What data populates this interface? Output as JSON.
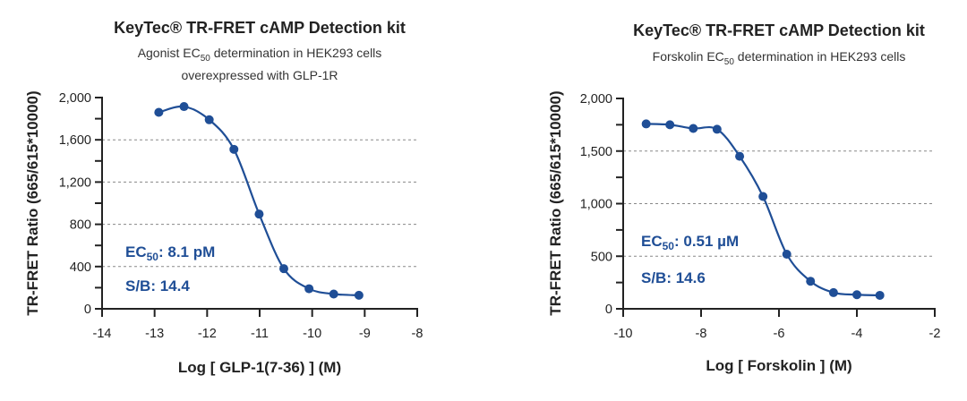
{
  "colors": {
    "series": "#1f4e96",
    "axis": "#222222",
    "grid": "#888888"
  },
  "chart_data": [
    {
      "type": "scatter",
      "fit": "sigmoidal curve",
      "title": "KeyTec® TR-FRET cAMP Detection kit",
      "subtitle": {
        "line1_pre": "Agonist EC",
        "line1_sub": "50",
        "line1_post": " determination in HEK293 cells",
        "line2": "overexpressed with GLP-1R"
      },
      "xlabel": "Log [ GLP-1(7-36) ] (M)",
      "ylabel": "TR-FRET Ratio (665/615*10000)",
      "xlim": [
        -14,
        -8
      ],
      "ylim": [
        0,
        2000
      ],
      "xticks": [
        -14,
        -13,
        -12,
        -11,
        -10,
        -9,
        -8
      ],
      "xtick_labels": [
        "-14",
        "-13",
        "-12",
        "-11",
        "-10",
        "-9",
        "-8"
      ],
      "yticks": [
        0,
        400,
        800,
        1200,
        1600,
        2000
      ],
      "ytick_labels": [
        "0",
        "400",
        "800",
        "1,200",
        "1,600",
        "2,000"
      ],
      "yminor_step": 200,
      "grid": [
        400,
        800,
        1200,
        1600
      ],
      "x": [
        -12.92,
        -12.44,
        -11.96,
        -11.49,
        -11.01,
        -10.54,
        -10.06,
        -9.59,
        -9.11
      ],
      "y": [
        1860,
        1915,
        1790,
        1510,
        897,
        380,
        190,
        140,
        128
      ],
      "annotations": {
        "ec_pre": "EC",
        "ec_sub": "50",
        "ec_post": ": 8.1 pM",
        "sb": "S/B: 14.4"
      }
    },
    {
      "type": "scatter",
      "fit": "sigmoidal curve",
      "title": "KeyTec® TR-FRET cAMP Detection kit",
      "subtitle": {
        "line1_pre": "Forskolin EC",
        "line1_sub": "50",
        "line1_post": " determination in HEK293 cells",
        "line2": ""
      },
      "xlabel": "Log [ Forskolin ] (M)",
      "ylabel": "TR-FRET Ratio (665/615*10000)",
      "xlim": [
        -10,
        -2
      ],
      "ylim": [
        0,
        2000
      ],
      "xticks": [
        -10,
        -8,
        -6,
        -4,
        -2
      ],
      "xtick_labels": [
        "-10",
        "-8",
        "-6",
        "-4",
        "-2"
      ],
      "yticks": [
        0,
        500,
        1000,
        1500,
        2000
      ],
      "ytick_labels": [
        "0",
        "500",
        "1,000",
        "1,500",
        "2,000"
      ],
      "yminor_step": 250,
      "grid": [
        500,
        1000,
        1500
      ],
      "x": [
        -9.41,
        -8.8,
        -8.2,
        -7.59,
        -7.01,
        -6.41,
        -5.8,
        -5.19,
        -4.6,
        -4.0,
        -3.41
      ],
      "y": [
        1758,
        1750,
        1715,
        1707,
        1450,
        1068,
        519,
        262,
        154,
        134,
        128
      ],
      "annotations": {
        "ec_pre": "EC",
        "ec_sub": "50",
        "ec_post": ": 0.51 µM",
        "sb": "S/B: 14.6"
      }
    }
  ]
}
